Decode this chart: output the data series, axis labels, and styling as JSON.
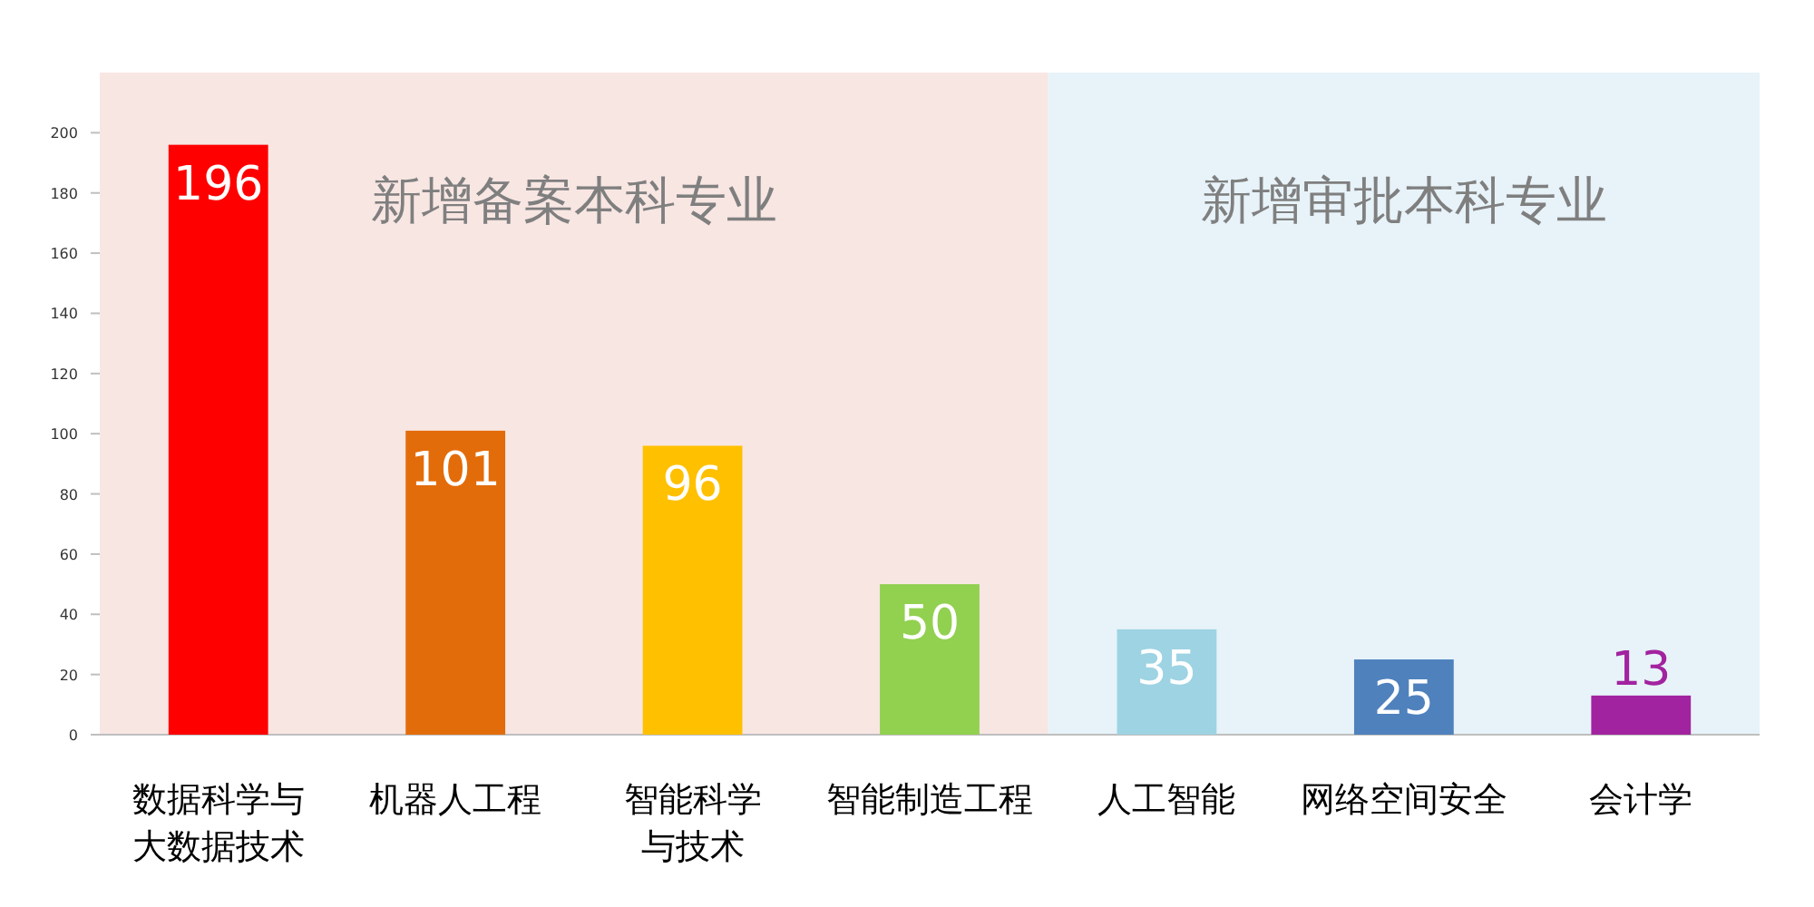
{
  "chart_data": {
    "type": "bar",
    "categories": [
      "数据科学与大数据技术",
      "机器人工程",
      "智能科学与技术",
      "智能制造工程",
      "人工智能",
      "网络空间安全",
      "会计学"
    ],
    "values": [
      196,
      101,
      96,
      50,
      35,
      25,
      13
    ],
    "colors": [
      "#ff0000",
      "#e36c0a",
      "#ffc000",
      "#92d050",
      "#9dd3e3",
      "#4f81bd",
      "#a2239f"
    ],
    "ylim": [
      0,
      220
    ],
    "yticks": [
      0,
      20,
      40,
      60,
      80,
      100,
      120,
      140,
      160,
      180,
      200
    ],
    "data_labels": true,
    "bands": [
      {
        "axis": "x",
        "from": "数据科学与大数据技术",
        "to": "智能制造工程",
        "label": "新增备案本科专业",
        "color": "#f8e6e3"
      },
      {
        "axis": "x",
        "from": "人工智能",
        "to": "会计学",
        "label": "新增审批本科专业",
        "color": "#e7f3f9"
      }
    ]
  }
}
